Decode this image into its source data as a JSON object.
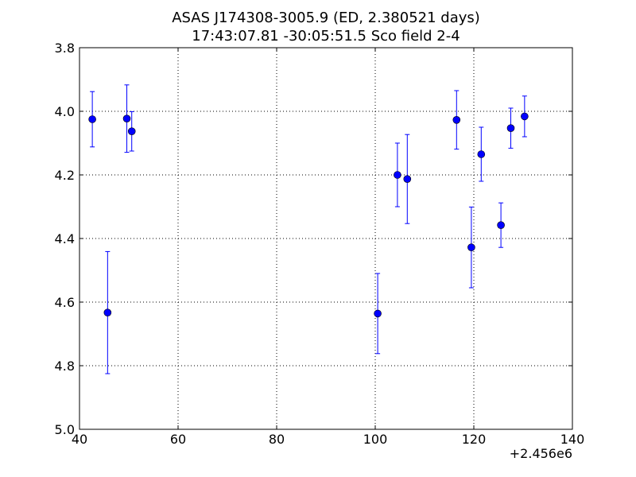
{
  "chart_data": {
    "type": "scatter",
    "title": "ASAS J174308-3005.9  (ED, 2.380521 days)",
    "subtitle": "17:43:07.81 -30:05:51.5 Sco field 2-4",
    "xlabel": "",
    "ylabel": "",
    "x_offset_label": "+2.456e6",
    "xlim": [
      40,
      140
    ],
    "ylim": [
      3.8,
      5.0
    ],
    "y_inverted": true,
    "x_ticks": [
      40,
      60,
      80,
      100,
      120,
      140
    ],
    "y_ticks": [
      3.8,
      4.0,
      4.2,
      4.4,
      4.6,
      4.8,
      5.0
    ],
    "x_tick_labels": [
      "40",
      "60",
      "80",
      "100",
      "120",
      "140"
    ],
    "y_tick_labels": [
      "3.8",
      "4.0",
      "4.2",
      "4.4",
      "4.6",
      "4.8",
      "5.0"
    ],
    "grid": true,
    "marker_color": "#0000ff",
    "points": [
      {
        "x": 42.6,
        "y": 4.025,
        "err": 0.087
      },
      {
        "x": 45.7,
        "y": 4.633,
        "err": 0.192
      },
      {
        "x": 49.6,
        "y": 4.023,
        "err": 0.106
      },
      {
        "x": 50.6,
        "y": 4.063,
        "err": 0.062
      },
      {
        "x": 100.5,
        "y": 4.636,
        "err": 0.126
      },
      {
        "x": 104.5,
        "y": 4.2,
        "err": 0.1
      },
      {
        "x": 106.5,
        "y": 4.213,
        "err": 0.14
      },
      {
        "x": 116.5,
        "y": 4.027,
        "err": 0.092
      },
      {
        "x": 119.5,
        "y": 4.428,
        "err": 0.127
      },
      {
        "x": 121.5,
        "y": 4.135,
        "err": 0.085
      },
      {
        "x": 125.5,
        "y": 4.358,
        "err": 0.07
      },
      {
        "x": 127.5,
        "y": 4.053,
        "err": 0.063
      },
      {
        "x": 130.3,
        "y": 4.016,
        "err": 0.064
      }
    ]
  }
}
